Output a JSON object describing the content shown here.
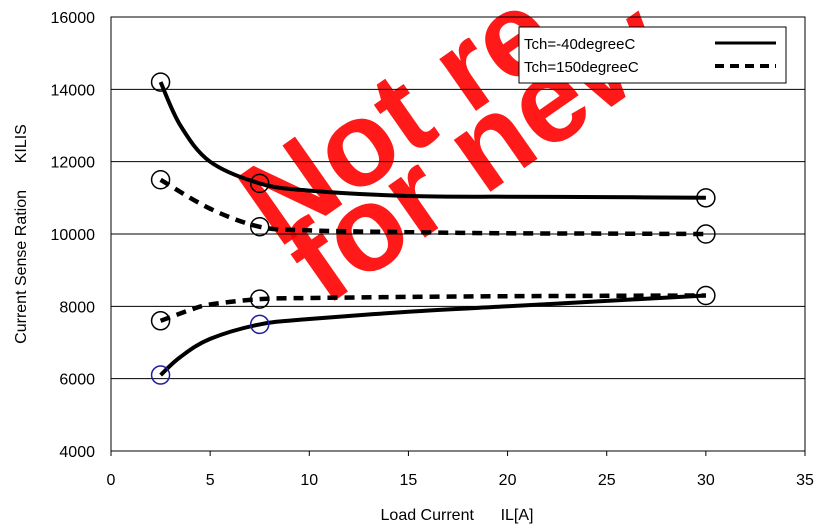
{
  "watermark": [
    "Not re",
    "for new"
  ],
  "colors": {
    "watermark": "#ff0000",
    "series": "#000000",
    "marker_black": "#000000",
    "marker_blue": "#1f1f9a",
    "grid": "#000000",
    "background": "#ffffff"
  },
  "chart_data": {
    "type": "line",
    "title": "",
    "xlabel": "Load Current      IL[A]",
    "ylabel": "Current Sense Ration      KILIS",
    "xlim": [
      0,
      35
    ],
    "ylim": [
      4000,
      16000
    ],
    "x_ticks": [
      "0",
      "5",
      "10",
      "15",
      "20",
      "25",
      "30",
      "35"
    ],
    "y_ticks": [
      "4000",
      "6000",
      "8000",
      "10000",
      "12000",
      "14000",
      "16000"
    ],
    "grid": "horizontal",
    "legend_position": "top-right",
    "legend": [
      "Tch=-40degreeC",
      "Tch=150degreeC"
    ],
    "series": [
      {
        "name": "Tch=-40degreeC",
        "style": "solid",
        "curves": [
          [
            [
              2.5,
              14200
            ],
            [
              3.5,
              13000
            ],
            [
              5,
              12000
            ],
            [
              7.5,
              11400
            ],
            [
              10,
              11200
            ],
            [
              15,
              11050
            ],
            [
              20,
              11030
            ],
            [
              25,
              11020
            ],
            [
              30,
              11000
            ]
          ],
          [
            [
              2.5,
              6100
            ],
            [
              3.5,
              6600
            ],
            [
              5,
              7100
            ],
            [
              7.5,
              7500
            ],
            [
              10,
              7650
            ],
            [
              15,
              7850
            ],
            [
              20,
              8000
            ],
            [
              25,
              8150
            ],
            [
              30,
              8300
            ]
          ]
        ],
        "markers": [
          {
            "x": 2.5,
            "y": 14200,
            "color": "black"
          },
          {
            "x": 7.5,
            "y": 11400,
            "color": "black"
          },
          {
            "x": 30,
            "y": 11000,
            "color": "black"
          },
          {
            "x": 2.5,
            "y": 6100,
            "color": "blue"
          },
          {
            "x": 7.5,
            "y": 7500,
            "color": "blue"
          },
          {
            "x": 30,
            "y": 8300,
            "color": "black"
          }
        ]
      },
      {
        "name": "Tch=150degreeC",
        "style": "dashed",
        "curves": [
          [
            [
              2.5,
              11500
            ],
            [
              5,
              10700
            ],
            [
              7.5,
              10200
            ],
            [
              10,
              10100
            ],
            [
              15,
              10050
            ],
            [
              20,
              10020
            ],
            [
              25,
              10010
            ],
            [
              30,
              10000
            ]
          ],
          [
            [
              2.5,
              7600
            ],
            [
              4,
              7900
            ],
            [
              5,
              8050
            ],
            [
              7.5,
              8200
            ],
            [
              10,
              8230
            ],
            [
              15,
              8260
            ],
            [
              20,
              8280
            ],
            [
              25,
              8290
            ],
            [
              30,
              8300
            ]
          ]
        ],
        "markers": [
          {
            "x": 2.5,
            "y": 11500,
            "color": "black"
          },
          {
            "x": 7.5,
            "y": 10200,
            "color": "black"
          },
          {
            "x": 30,
            "y": 10000,
            "color": "black"
          },
          {
            "x": 2.5,
            "y": 7600,
            "color": "black"
          },
          {
            "x": 7.5,
            "y": 8200,
            "color": "black"
          }
        ]
      }
    ]
  }
}
